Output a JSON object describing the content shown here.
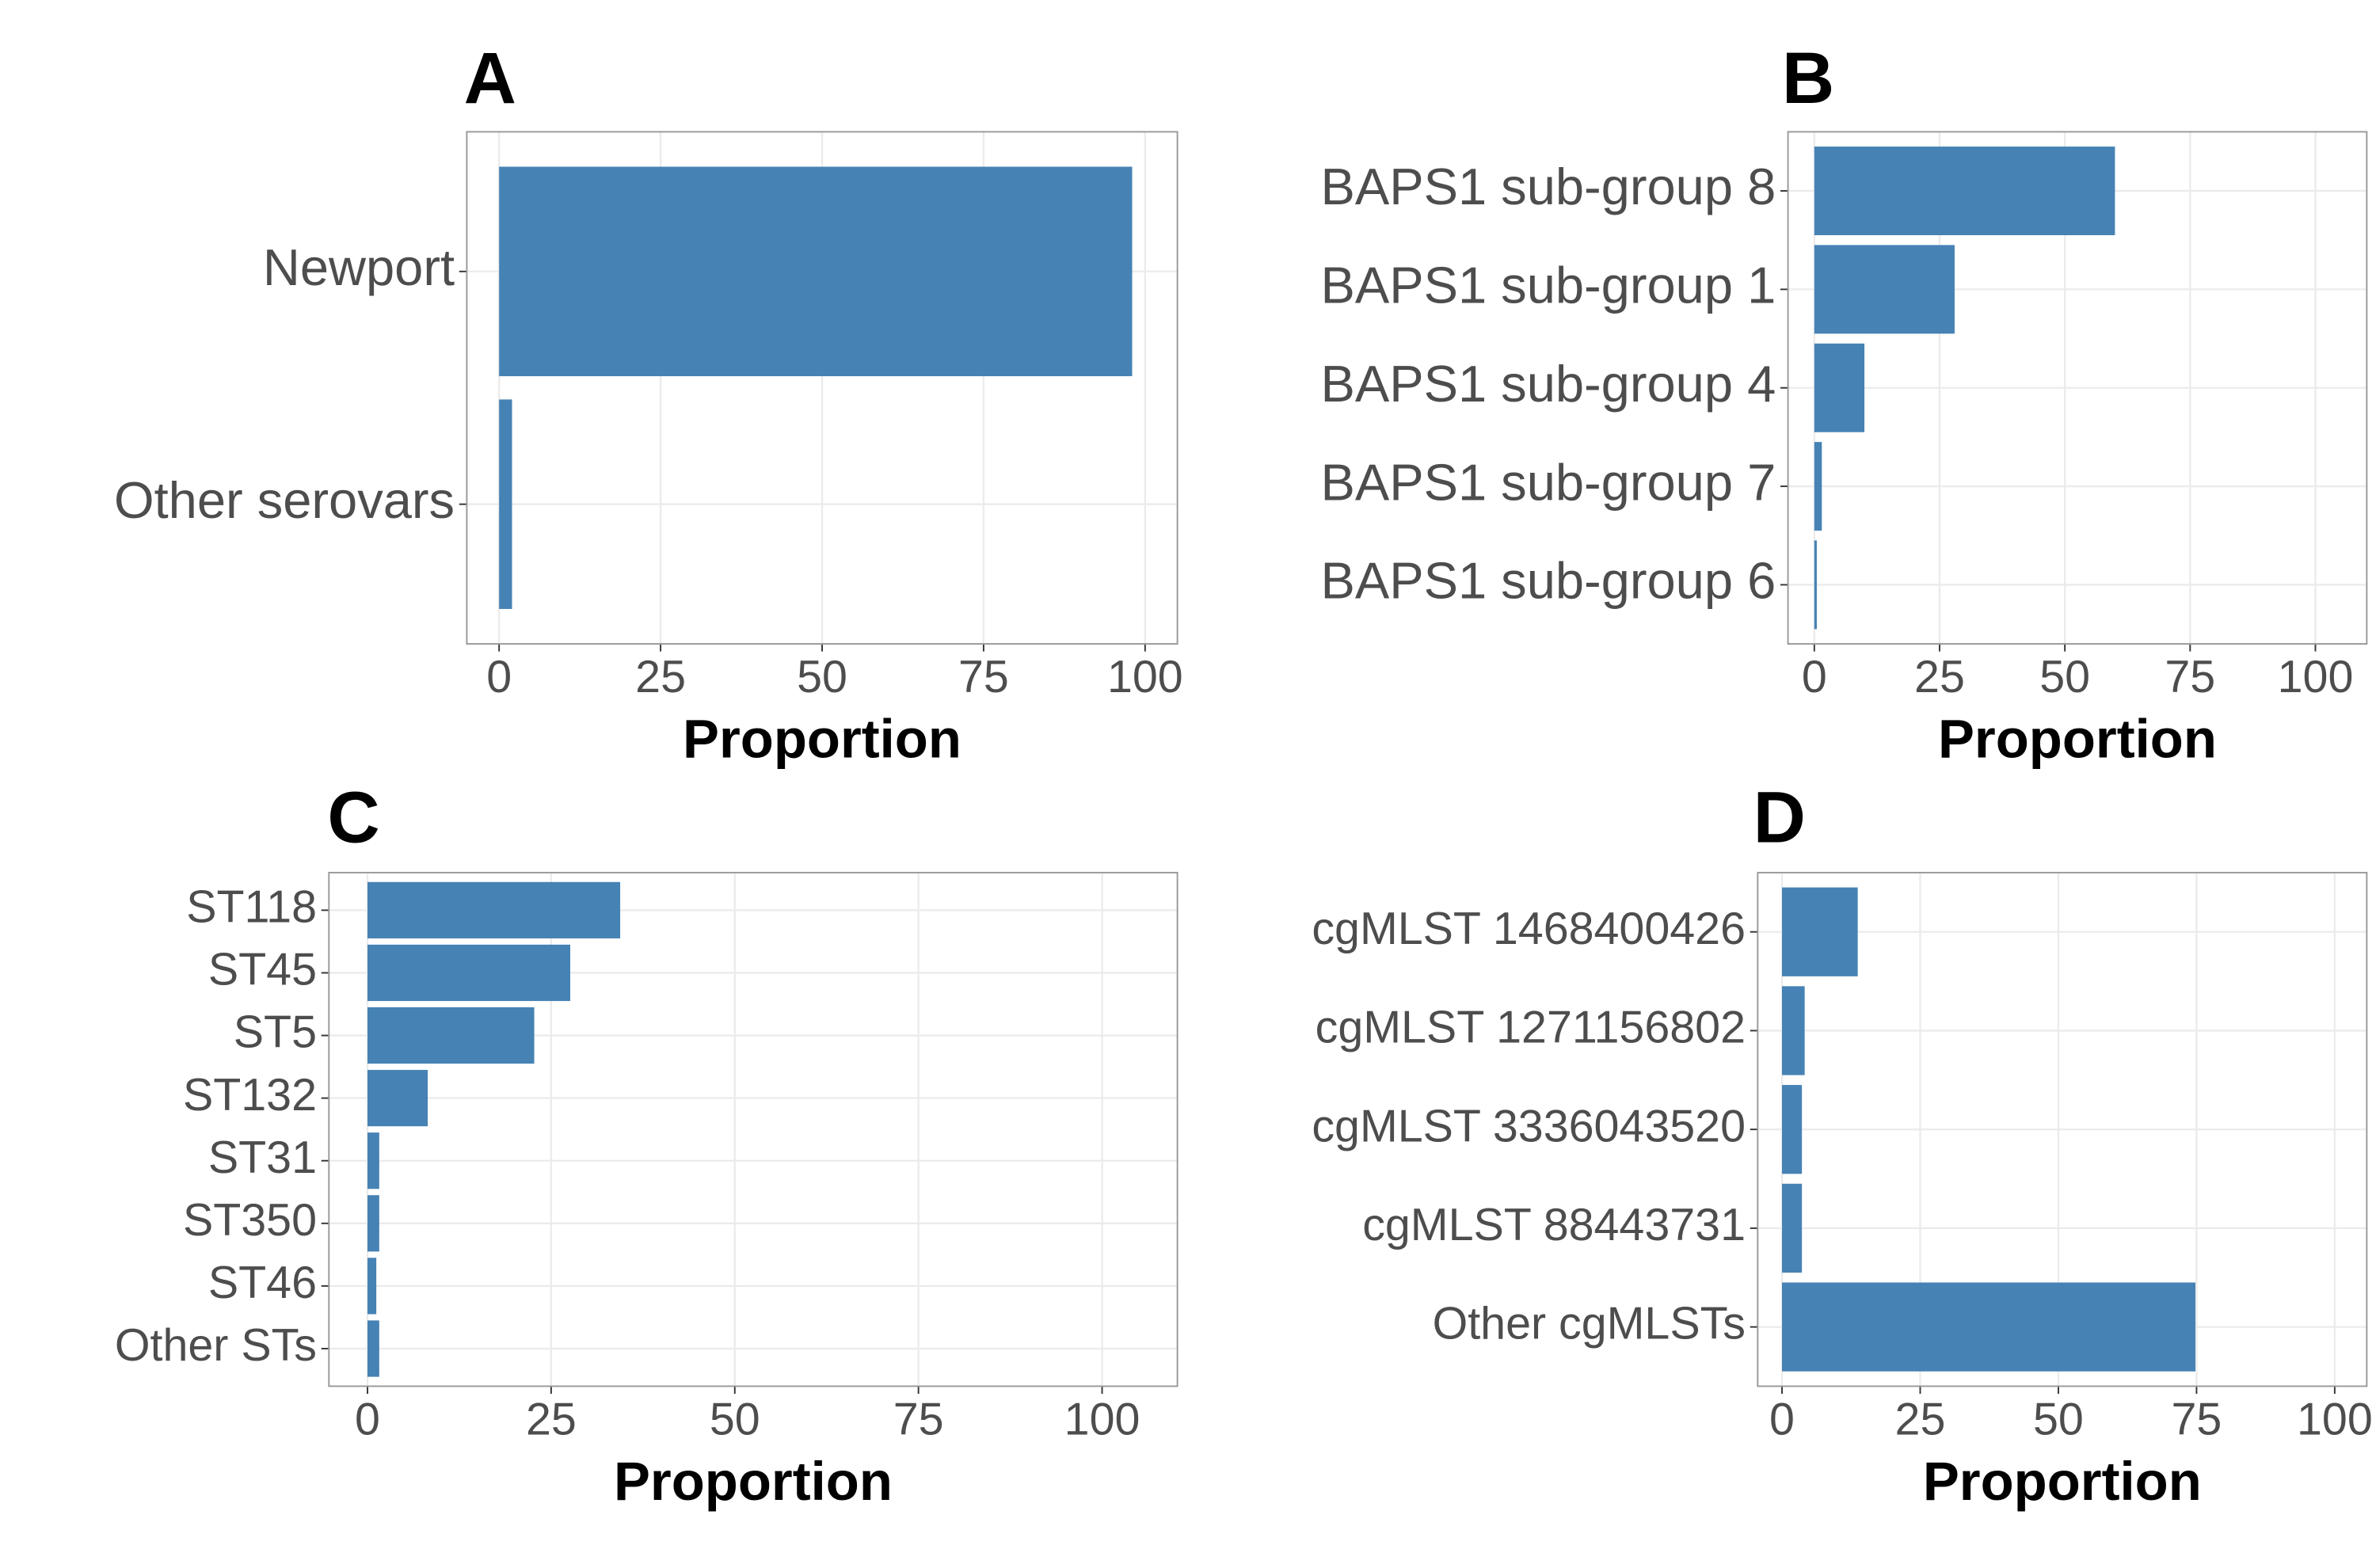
{
  "chart_data": [
    {
      "type": "bar",
      "title": "A",
      "x_label": "Proportion",
      "categories": [
        "Newport",
        "Other serovars"
      ],
      "values": [
        98,
        2
      ],
      "color": "#4682b4",
      "xlim": [
        -5,
        105
      ],
      "xticks": [
        0,
        25,
        50,
        75,
        100
      ],
      "grid": true
    },
    {
      "type": "bar",
      "title": "B",
      "x_label": "Proportion",
      "categories": [
        "BAPS1 sub-group 8",
        "BAPS1 sub-group 1",
        "BAPS1 sub-group 4",
        "BAPS1 sub-group 7",
        "BAPS1 sub-group 6"
      ],
      "values": [
        60,
        28,
        10,
        1.5,
        0.5
      ],
      "color": "#4682b4",
      "xlim": [
        -5.25,
        110.25
      ],
      "xticks": [
        0,
        25,
        50,
        75,
        100
      ],
      "grid": true
    },
    {
      "type": "bar",
      "title": "C",
      "x_label": "Proportion",
      "categories": [
        "ST118",
        "ST45",
        "ST5",
        "ST132",
        "ST31",
        "ST350",
        "ST46",
        "Other STs"
      ],
      "values": [
        34.4,
        27.6,
        22.7,
        8.2,
        1.6,
        1.6,
        1.2,
        1.6
      ],
      "color": "#4682b4",
      "xlim": [
        -5.25,
        110.25
      ],
      "xticks": [
        0,
        25,
        50,
        75,
        100
      ],
      "grid": true
    },
    {
      "type": "bar",
      "title": "D",
      "x_label": "Proportion",
      "categories": [
        "cgMLST 1468400426",
        "cgMLST 1271156802",
        "cgMLST 3336043520",
        "cgMLST 88443731",
        "Other cgMLSTs"
      ],
      "values": [
        13.7,
        4.1,
        3.6,
        3.6,
        74.8
      ],
      "color": "#4682b4",
      "xlim": [
        -4.4,
        105.8
      ],
      "xticks": [
        0,
        25,
        50,
        75,
        100
      ],
      "grid": true
    }
  ]
}
